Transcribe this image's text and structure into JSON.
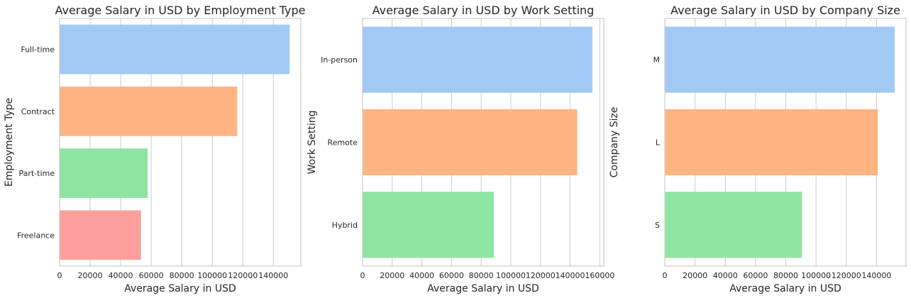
{
  "chart_data": [
    {
      "type": "bar",
      "orientation": "horizontal",
      "title": "Average Salary in USD by Employment Type",
      "xlabel": "Average Salary in USD",
      "ylabel": "Employment Type",
      "categories": [
        "Full-time",
        "Contract",
        "Part-time",
        "Freelance"
      ],
      "values": [
        150600,
        116400,
        57700,
        53300
      ],
      "colors": [
        "#a1c9f4",
        "#ffb482",
        "#8de5a1",
        "#ff9f9b"
      ],
      "xlim": [
        0,
        158000
      ],
      "xticks": [
        0,
        20000,
        40000,
        60000,
        80000,
        100000,
        120000,
        140000
      ],
      "xtick_labels": [
        "0",
        "20000",
        "40000",
        "60000",
        "80000",
        "100000",
        "120000",
        "140000"
      ],
      "grid": "vertical"
    },
    {
      "type": "bar",
      "orientation": "horizontal",
      "title": "Average Salary in USD by Work Setting",
      "xlabel": "Average Salary in USD",
      "ylabel": "Work Setting",
      "categories": [
        "In-person",
        "Remote",
        "Hybrid"
      ],
      "values": [
        155000,
        144800,
        88600
      ],
      "colors": [
        "#a1c9f4",
        "#ffb482",
        "#8de5a1"
      ],
      "xlim": [
        0,
        162700
      ],
      "xticks": [
        0,
        20000,
        40000,
        60000,
        80000,
        100000,
        120000,
        140000,
        160000
      ],
      "xtick_labels": [
        "0",
        "20000",
        "40000",
        "60000",
        "80000",
        "100000",
        "120000",
        "140000",
        "160000"
      ],
      "grid": "vertical"
    },
    {
      "type": "bar",
      "orientation": "horizontal",
      "title": "Average Salary in USD by Company Size",
      "xlabel": "Average Salary in USD",
      "ylabel": "Company Size",
      "categories": [
        "M",
        "L",
        "S"
      ],
      "values": [
        152000,
        140800,
        90600
      ],
      "colors": [
        "#a1c9f4",
        "#ffb482",
        "#8de5a1"
      ],
      "xlim": [
        0,
        159500
      ],
      "xticks": [
        0,
        20000,
        40000,
        60000,
        80000,
        100000,
        120000,
        140000
      ],
      "xtick_labels": [
        "0",
        "20000",
        "40000",
        "60000",
        "80000",
        "100000",
        "120000",
        "140000"
      ],
      "grid": "vertical"
    }
  ]
}
